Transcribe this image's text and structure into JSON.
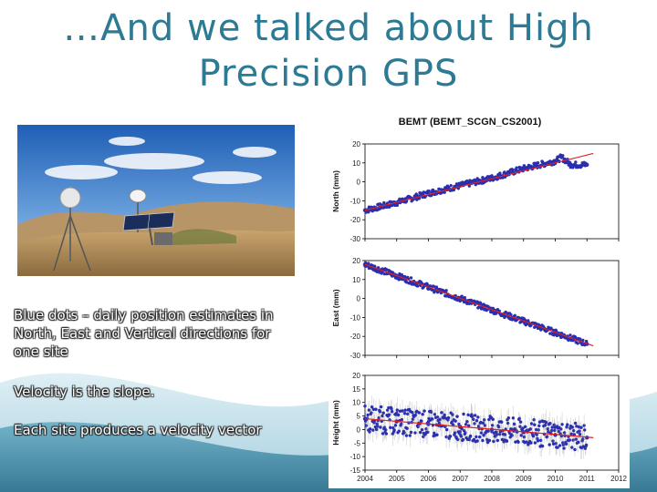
{
  "slide": {
    "title_line1": "…And we talked about High",
    "title_line2": "Precision GPS",
    "paragraph1": "Blue dots – daily position estimates in North, East and Vertical directions for one site",
    "paragraph2": "Velocity is the slope.",
    "paragraph3": "Each site produces a velocity vector",
    "colors": {
      "title": "#2c7a93",
      "wave_dark": "#2b6f8c",
      "wave_light": "#8fc3d6",
      "dots": "#2a2fb0",
      "trend": "#e02020"
    }
  },
  "chart_data": {
    "type": "scatter",
    "title": "BEMT (BEMT_SCGN_CS2001)",
    "x_ticks": [
      "2004",
      "2005",
      "2006",
      "2007",
      "2008",
      "2009",
      "2010",
      "2011",
      "2012"
    ],
    "xlim": [
      2004,
      2012
    ],
    "panels": [
      {
        "ylabel": "North (mm)",
        "ylim": [
          -30,
          20
        ],
        "y_ticks": [
          "20",
          "10",
          "0",
          "-10",
          "-20",
          "-30"
        ],
        "trend": {
          "x": [
            2004,
            2011.2
          ],
          "y": [
            -15,
            15
          ]
        },
        "points": [
          {
            "x": 2004.0,
            "y": -15
          },
          {
            "x": 2005.0,
            "y": -11
          },
          {
            "x": 2006.0,
            "y": -6
          },
          {
            "x": 2007.0,
            "y": -2
          },
          {
            "x": 2008.0,
            "y": 2
          },
          {
            "x": 2009.0,
            "y": 7
          },
          {
            "x": 2010.0,
            "y": 11
          },
          {
            "x": 2010.2,
            "y": 13
          },
          {
            "x": 2010.5,
            "y": 9
          },
          {
            "x": 2011.0,
            "y": 9
          }
        ]
      },
      {
        "ylabel": "East (mm)",
        "ylim": [
          -30,
          20
        ],
        "y_ticks": [
          "20",
          "10",
          "0",
          "-10",
          "-20",
          "-30"
        ],
        "trend": {
          "x": [
            2004,
            2011.2
          ],
          "y": [
            18,
            -25
          ]
        },
        "points": [
          {
            "x": 2004.0,
            "y": 18
          },
          {
            "x": 2005.0,
            "y": 12
          },
          {
            "x": 2006.0,
            "y": 6
          },
          {
            "x": 2007.0,
            "y": 0
          },
          {
            "x": 2008.0,
            "y": -6
          },
          {
            "x": 2009.0,
            "y": -12
          },
          {
            "x": 2010.0,
            "y": -18
          },
          {
            "x": 2011.0,
            "y": -24
          }
        ]
      },
      {
        "ylabel": "Height (mm)",
        "ylim": [
          -15,
          20
        ],
        "y_ticks": [
          "20",
          "15",
          "10",
          "5",
          "0",
          "-5",
          "-10",
          "-15"
        ],
        "trend": {
          "x": [
            2004,
            2011.2
          ],
          "y": [
            4,
            -3
          ]
        },
        "points": [
          {
            "x": 2004.0,
            "y": 4
          },
          {
            "x": 2005.0,
            "y": 3
          },
          {
            "x": 2006.0,
            "y": 2
          },
          {
            "x": 2007.0,
            "y": 1
          },
          {
            "x": 2008.0,
            "y": 0
          },
          {
            "x": 2009.0,
            "y": -1
          },
          {
            "x": 2010.0,
            "y": -2
          },
          {
            "x": 2011.0,
            "y": -3
          }
        ]
      }
    ]
  }
}
